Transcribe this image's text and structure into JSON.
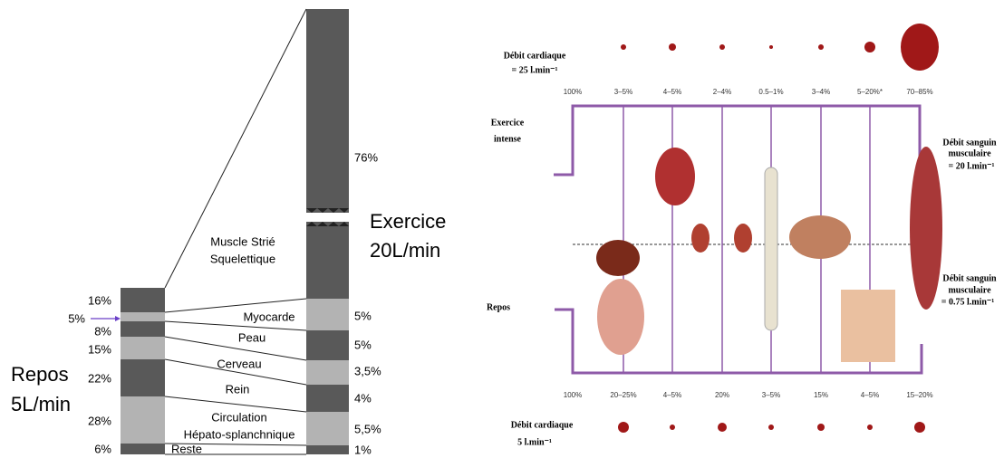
{
  "left": {
    "rest_label": "Repos",
    "rest_flow": "5L/min",
    "exercise_label": "Exercice",
    "exercise_flow": "20L/min",
    "muscle": [
      "Muscle Strié",
      "Squelettique"
    ],
    "organs": [
      "Myocarde",
      "Peau",
      "Cerveau",
      "Rein",
      "Circulation",
      "Hépato-splanchnique",
      "Reste"
    ],
    "rest_percents": [
      "16%",
      "5%",
      "8%",
      "15%",
      "22%",
      "28%",
      "6%"
    ],
    "exercise_percents": [
      "76%",
      "5%",
      "5%",
      "3,5%",
      "4%",
      "5,5%",
      "1%"
    ]
  },
  "right": {
    "top_label": [
      "Débit cardiaque",
      "= 25 l.min⁻¹"
    ],
    "top_percents": [
      "100%",
      "3–5%",
      "4–5%",
      "2–4%",
      "0.5–1%",
      "3–4%",
      "5–20%*",
      "70–85%"
    ],
    "exercise_label": [
      "Exercice",
      "intense"
    ],
    "rest_label": "Repos",
    "muscle_exercise": [
      "Débit sanguin",
      "musculaire",
      "= 20 l.min⁻¹"
    ],
    "muscle_rest": [
      "Débit sanguin",
      "musculaire",
      "= 0.75 l.min⁻¹"
    ],
    "bottom_percents": [
      "100%",
      "20–25%",
      "4–5%",
      "20%",
      "3–5%",
      "15%",
      "4–5%",
      "15–20%"
    ],
    "bottom_label": [
      "Débit cardiaque",
      "5 l.min⁻¹"
    ]
  }
}
